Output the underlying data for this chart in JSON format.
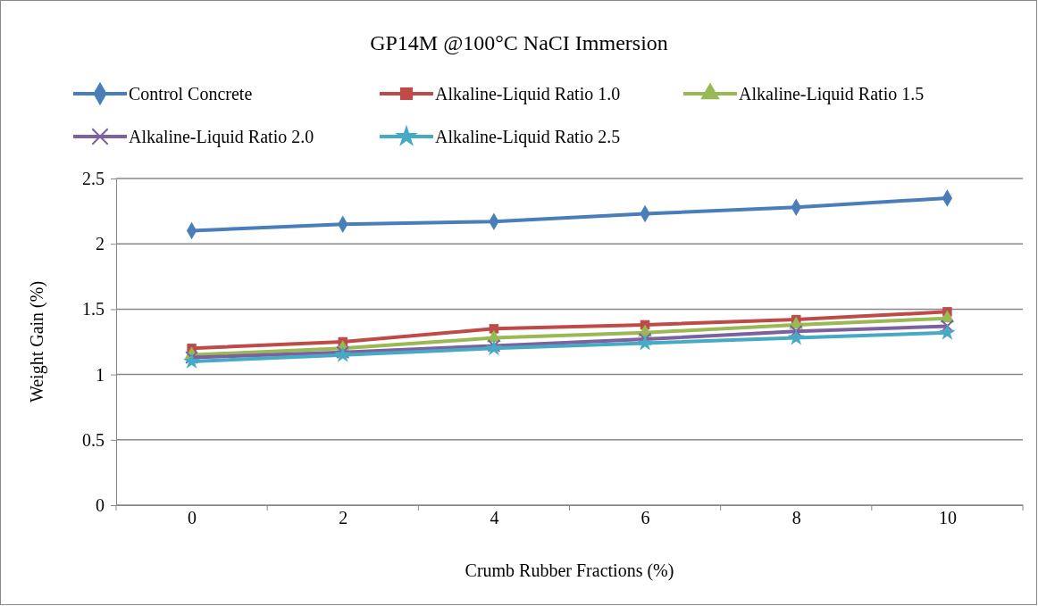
{
  "chart_data": {
    "type": "line",
    "title": "GP14M @100°C NaCI Immersion",
    "xlabel": "Crumb Rubber Fractions (%)",
    "ylabel": "Weight Gain (%)",
    "categories": [
      "0",
      "2",
      "4",
      "6",
      "8",
      "10"
    ],
    "ylim": [
      0,
      2.5
    ],
    "yticks": [
      0,
      0.5,
      1,
      1.5,
      2,
      2.5
    ],
    "grid": "y",
    "legend": "top",
    "series": [
      {
        "name": "Control Concrete",
        "color": "#4a7ebb",
        "marker": "diamond",
        "values": [
          2.1,
          2.15,
          2.17,
          2.23,
          2.28,
          2.35
        ]
      },
      {
        "name": "Alkaline-Liquid Ratio 1.0",
        "color": "#be4b48",
        "marker": "square",
        "values": [
          1.2,
          1.25,
          1.35,
          1.38,
          1.42,
          1.48
        ]
      },
      {
        "name": "Alkaline-Liquid Ratio 1.5",
        "color": "#98b954",
        "marker": "triangle",
        "values": [
          1.15,
          1.2,
          1.28,
          1.32,
          1.38,
          1.43
        ]
      },
      {
        "name": "Alkaline-Liquid Ratio 2.0",
        "color": "#7d60a0",
        "marker": "cross",
        "values": [
          1.13,
          1.17,
          1.22,
          1.27,
          1.33,
          1.37
        ]
      },
      {
        "name": "Alkaline-Liquid Ratio 2.5",
        "color": "#46aac5",
        "marker": "star",
        "values": [
          1.1,
          1.15,
          1.2,
          1.24,
          1.28,
          1.32
        ]
      }
    ]
  }
}
